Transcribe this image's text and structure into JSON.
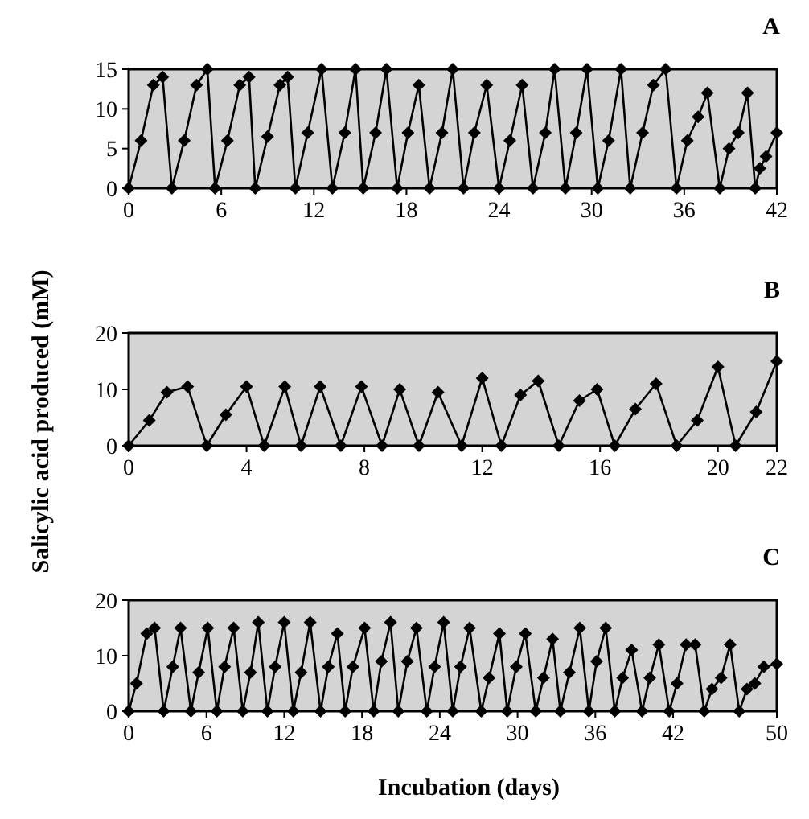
{
  "chart_data": [
    {
      "type": "line",
      "title": "A",
      "marker": "diamond",
      "line_style": "solid",
      "grid": false,
      "xlim": [
        0,
        42
      ],
      "xticks": [
        0,
        6,
        12,
        18,
        24,
        30,
        36,
        42
      ],
      "ylim": [
        0,
        15
      ],
      "yticks": [
        0,
        5,
        10,
        15
      ],
      "series": [
        {
          "color": "#000000",
          "x": [
            0,
            0.8,
            1.6,
            2.2,
            2.8,
            3.6,
            4.4,
            5.1,
            5.6,
            6.4,
            7.2,
            7.8,
            8.2,
            9,
            9.8,
            10.3,
            10.8,
            11.6,
            12.5,
            13.2,
            14,
            14.7,
            15.2,
            16,
            16.7,
            17.4,
            18.1,
            18.8,
            19.5,
            20.3,
            21,
            21.7,
            22.4,
            23.2,
            24,
            24.7,
            25.5,
            26.2,
            27,
            27.6,
            28.3,
            29,
            29.7,
            30.4,
            31.1,
            31.9,
            32.5,
            33.3,
            34,
            34.8,
            35.5,
            36.2,
            36.9,
            37.5,
            38.3,
            38.9,
            39.5,
            40.1,
            40.6,
            40.9,
            41.3,
            42
          ],
          "values": [
            0,
            6,
            13,
            14,
            0,
            6,
            13,
            15,
            0,
            6,
            13,
            14,
            0,
            6.5,
            13,
            14,
            0,
            7,
            15,
            0,
            7,
            15,
            0,
            7,
            15,
            0,
            7,
            13,
            0,
            7,
            15,
            0,
            7,
            13,
            0,
            6,
            13,
            0,
            7,
            15,
            0,
            7,
            15,
            0,
            6,
            15,
            0,
            7,
            13,
            15,
            0,
            6,
            9,
            12,
            0,
            5,
            7,
            12,
            0,
            2.5,
            4,
            7
          ]
        }
      ]
    },
    {
      "type": "line",
      "title": "B",
      "ylabel": "Salicylic acid produced (mM)",
      "marker": "diamond",
      "line_style": "solid",
      "grid": false,
      "xlim": [
        0,
        22
      ],
      "xticks": [
        0,
        4,
        8,
        12,
        16,
        20,
        22
      ],
      "ylim": [
        0,
        20
      ],
      "yticks": [
        0,
        10,
        20
      ],
      "series": [
        {
          "color": "#000000",
          "x": [
            0,
            0.7,
            1.3,
            2,
            2.65,
            3.3,
            4,
            4.6,
            5.3,
            5.85,
            6.5,
            7.2,
            7.9,
            8.6,
            9.2,
            9.85,
            10.5,
            11.3,
            12,
            12.65,
            13.3,
            13.9,
            14.6,
            15.3,
            15.9,
            16.5,
            17.2,
            17.9,
            18.6,
            19.3,
            20,
            20.6,
            21.3,
            22
          ],
          "values": [
            0,
            4.5,
            9.5,
            10.5,
            0,
            5.5,
            10.5,
            0,
            10.5,
            0,
            10.5,
            0,
            10.5,
            0,
            10,
            0,
            9.5,
            0,
            12,
            0,
            9,
            11.5,
            0,
            8,
            10,
            0,
            6.5,
            11,
            0,
            4.5,
            14,
            0,
            6,
            15
          ]
        }
      ]
    },
    {
      "type": "line",
      "title": "C",
      "xlabel": "Incubation (days)",
      "marker": "diamond",
      "line_style": "solid",
      "grid": false,
      "xlim": [
        0,
        50
      ],
      "xticks": [
        0,
        6,
        12,
        18,
        24,
        30,
        36,
        42,
        50
      ],
      "ylim": [
        0,
        20
      ],
      "yticks": [
        0,
        10,
        20
      ],
      "series": [
        {
          "color": "#000000",
          "x": [
            0,
            0.6,
            1.4,
            2,
            2.7,
            3.4,
            4,
            4.8,
            5.4,
            6.1,
            6.8,
            7.4,
            8.1,
            8.8,
            9.4,
            10,
            10.7,
            11.3,
            12,
            12.7,
            13.3,
            14,
            14.8,
            15.4,
            16.1,
            16.7,
            17.3,
            18.2,
            18.9,
            19.5,
            20.2,
            20.8,
            21.5,
            22.2,
            23,
            23.6,
            24.3,
            25,
            25.6,
            26.3,
            27.2,
            27.8,
            28.6,
            29.2,
            29.9,
            30.6,
            31.4,
            32,
            32.7,
            33.3,
            34,
            34.8,
            35.5,
            36.1,
            36.8,
            37.5,
            38.1,
            38.8,
            39.6,
            40.2,
            40.9,
            41.7,
            42.3,
            43,
            43.7,
            44.4,
            45,
            45.7,
            46.4,
            47.1,
            47.7,
            48.3,
            49,
            50
          ],
          "values": [
            0,
            5,
            14,
            15,
            0,
            8,
            15,
            0,
            7,
            15,
            0,
            8,
            15,
            0,
            7,
            16,
            0,
            8,
            16,
            0,
            7,
            16,
            0,
            8,
            14,
            0,
            8,
            15,
            0,
            9,
            16,
            0,
            9,
            15,
            0,
            8,
            16,
            0,
            8,
            15,
            0,
            6,
            14,
            0,
            8,
            14,
            0,
            6,
            13,
            0,
            7,
            15,
            0,
            9,
            15,
            0,
            6,
            11,
            0,
            6,
            12,
            0,
            5,
            12,
            12,
            0,
            4,
            6,
            12,
            0,
            4,
            5,
            8,
            8.5
          ]
        }
      ]
    }
  ]
}
